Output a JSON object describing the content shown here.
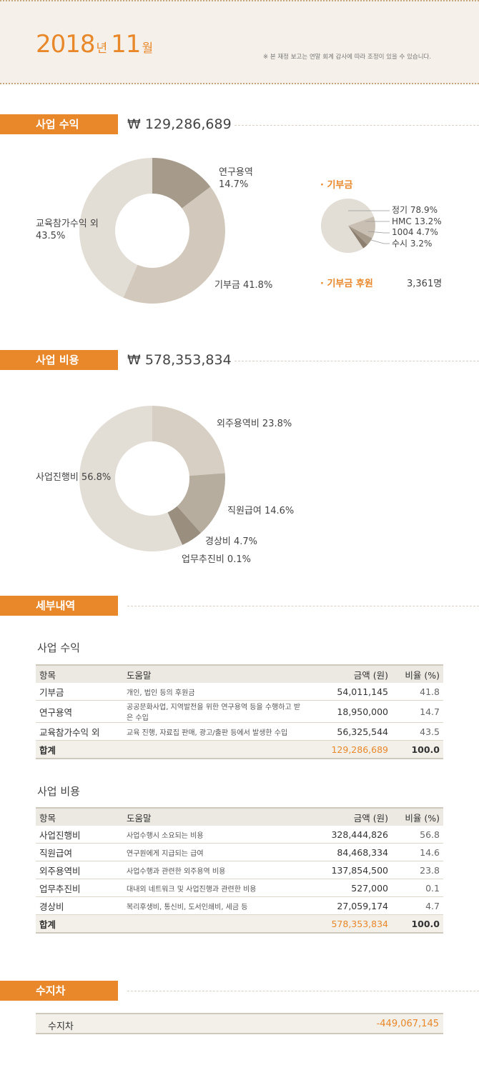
{
  "header": {
    "year": "2018",
    "year_unit": "년",
    "month": "11",
    "month_unit": "월",
    "notice": "※ 본 재정 보고는 연말 회계 감사에 따라 조정이 있을 수 있습니다."
  },
  "revenue": {
    "label": "사업 수익",
    "amount": "₩ 129,286,689",
    "donation": {
      "title": "· 기부금",
      "sponsor_label": "· 기부금 후원",
      "sponsor_count": "3,361명"
    }
  },
  "expense": {
    "label": "사업 비용",
    "amount": "₩ 578,353,834"
  },
  "chart_data": [
    {
      "type": "pie",
      "categories": [
        "연구용역",
        "기부금",
        "교육참가수익 외"
      ],
      "values": [
        14.7,
        41.8,
        43.5
      ],
      "labels": [
        "연구용역\n14.7%",
        "기부금 41.8%",
        "교육참가수익 외\n43.5%"
      ],
      "colors": [
        "#a69a8b",
        "#d2c9bc",
        "#e2ddd5"
      ]
    },
    {
      "type": "pie",
      "categories": [
        "정기",
        "HMC",
        "1004",
        "수시"
      ],
      "values": [
        78.9,
        13.2,
        4.7,
        3.2
      ],
      "labels": [
        "정기  78.9%",
        "HMC  13.2%",
        "1004    4.7%",
        "수시    3.2%"
      ],
      "colors": [
        "#e2ddd5",
        "#c9c0b3",
        "#a69a8b",
        "#8c7f70"
      ]
    },
    {
      "type": "pie",
      "categories": [
        "외주용역비",
        "직원급여",
        "경상비",
        "업무추진비",
        "사업진행비"
      ],
      "values": [
        23.8,
        14.6,
        4.7,
        0.1,
        56.8
      ],
      "labels": [
        "외주용역비 23.8%",
        "직원급여 14.6%",
        "경상비 4.7%",
        "업무추진비 0.1%",
        "사업진행비 56.8%"
      ],
      "colors": [
        "#d7cfc3",
        "#b7ad9f",
        "#9a8e7f",
        "#6f6457",
        "#e2ddd5"
      ]
    }
  ],
  "details": {
    "label": "세부내역",
    "revenue_title": "사업 수익",
    "expense_title": "사업 비용",
    "columns": [
      "항목",
      "도움말",
      "금액 (원)",
      "비율 (%)"
    ],
    "revenue_rows": [
      {
        "item": "기부금",
        "desc": "개인, 법인 등의 후원금",
        "amount": "54,011,145",
        "pct": "41.8"
      },
      {
        "item": "연구용역",
        "desc": "공공문화사업, 지역발전을 위한 연구용역 등을 수행하고 받은 수입",
        "amount": "18,950,000",
        "pct": "14.7"
      },
      {
        "item": "교육참가수익 외",
        "desc": "교육 진행, 자료집 판매, 광고/출판 등에서 발생한 수입",
        "amount": "56,325,544",
        "pct": "43.5"
      }
    ],
    "revenue_total": {
      "item": "합계",
      "amount": "129,286,689",
      "pct": "100.0"
    },
    "expense_rows": [
      {
        "item": "사업진행비",
        "desc": "사업수행시 소요되는 비용",
        "amount": "328,444,826",
        "pct": "56.8"
      },
      {
        "item": "직원급여",
        "desc": "연구원에게 지급되는 급여",
        "amount": "84,468,334",
        "pct": "14.6"
      },
      {
        "item": "외주용역비",
        "desc": "사업수행과 관련한 외주용역 비용",
        "amount": "137,854,500",
        "pct": "23.8"
      },
      {
        "item": "업무추진비",
        "desc": "대내외 네트워크 및 사업진행과 관련한 비용",
        "amount": "527,000",
        "pct": "0.1"
      },
      {
        "item": "경상비",
        "desc": "복리후생비, 통신비, 도서인쇄비, 세금 등",
        "amount": "27,059,174",
        "pct": "4.7"
      }
    ],
    "expense_total": {
      "item": "합계",
      "amount": "578,353,834",
      "pct": "100.0"
    }
  },
  "balance": {
    "label": "수지차",
    "row_label": "수지차",
    "value": "-449,067,145"
  }
}
